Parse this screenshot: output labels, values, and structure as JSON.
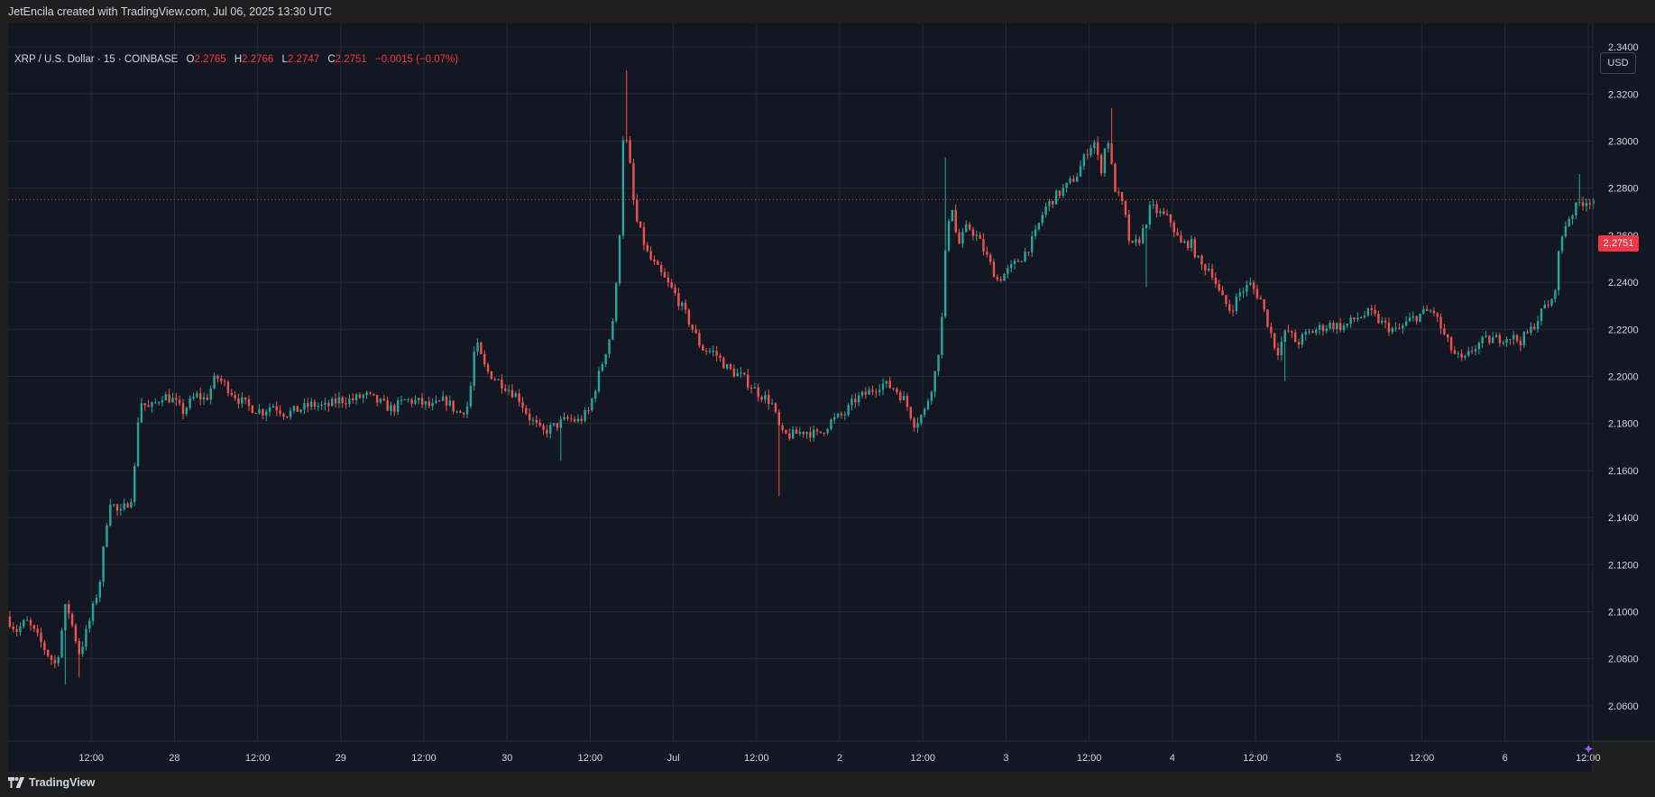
{
  "header": {
    "attribution": "JetEncila created with TradingView.com, Jul 06, 2025 13:30 UTC"
  },
  "legend": {
    "symbol": "XRP / U.S. Dollar · 15 · COINBASE",
    "open_label": "O",
    "open": "2.2765",
    "high_label": "H",
    "high": "2.2766",
    "low_label": "L",
    "low": "2.2747",
    "close_label": "C",
    "close": "2.2751",
    "change": "−0.0015 (−0.07%)"
  },
  "currency_button": "USD",
  "last_price_tag": "2.2751",
  "footer": {
    "brand": "TradingView"
  },
  "icons": {
    "sparkle": "sparkle-icon",
    "logo": "tradingview-logo-icon"
  },
  "colors": {
    "background": "#131722",
    "frame": "#1e1e1e",
    "up": "#26a69a",
    "down": "#ef5350",
    "grid": "#262a35",
    "text": "#d1d4dc",
    "price_line": "#f23645"
  },
  "chart_data": {
    "type": "candlestick",
    "title": "XRP / U.S. Dollar · 15 · COINBASE",
    "ylim": [
      2.045,
      2.35
    ],
    "y_ticks": [
      2.06,
      2.08,
      2.1,
      2.12,
      2.14,
      2.16,
      2.18,
      2.2,
      2.22,
      2.24,
      2.26,
      2.28,
      2.3,
      2.32,
      2.34
    ],
    "y_tick_labels": [
      "2.0600",
      "2.0800",
      "2.1000",
      "2.1200",
      "2.1400",
      "2.1600",
      "2.1800",
      "2.2000",
      "2.2200",
      "2.2400",
      "2.2600",
      "2.2800",
      "2.3000",
      "2.3200",
      "2.3400"
    ],
    "x_ticks": [
      {
        "t": 0.25,
        "label": "12:00"
      },
      {
        "t": 0.5,
        "label": "28"
      },
      {
        "t": 0.75,
        "label": "12:00"
      },
      {
        "t": 1.0,
        "label": "29"
      },
      {
        "t": 1.25,
        "label": "12:00"
      },
      {
        "t": 1.5,
        "label": "30"
      },
      {
        "t": 1.75,
        "label": "12:00"
      },
      {
        "t": 2.0,
        "label": "Jul"
      },
      {
        "t": 2.25,
        "label": "12:00"
      },
      {
        "t": 2.5,
        "label": "2"
      },
      {
        "t": 2.75,
        "label": "12:00"
      },
      {
        "t": 3.0,
        "label": "3"
      },
      {
        "t": 3.25,
        "label": "12:00"
      },
      {
        "t": 3.5,
        "label": "4"
      },
      {
        "t": 3.75,
        "label": "12:00"
      },
      {
        "t": 4.0,
        "label": "5"
      },
      {
        "t": 4.25,
        "label": "12:00"
      },
      {
        "t": 4.5,
        "label": "6"
      },
      {
        "t": 4.75,
        "label": "12:00"
      }
    ],
    "x_range": [
      0.0,
      4.764
    ],
    "last_price": 2.2751,
    "close_path": [
      [
        0.0,
        2.098
      ],
      [
        0.03,
        2.092
      ],
      [
        0.06,
        2.096
      ],
      [
        0.09,
        2.09
      ],
      [
        0.12,
        2.083
      ],
      [
        0.15,
        2.077
      ],
      [
        0.18,
        2.104
      ],
      [
        0.22,
        2.082
      ],
      [
        0.25,
        2.096
      ],
      [
        0.28,
        2.112
      ],
      [
        0.31,
        2.148
      ],
      [
        0.34,
        2.141
      ],
      [
        0.38,
        2.15
      ],
      [
        0.4,
        2.19
      ],
      [
        0.43,
        2.186
      ],
      [
        0.47,
        2.192
      ],
      [
        0.5,
        2.19
      ],
      [
        0.53,
        2.185
      ],
      [
        0.57,
        2.192
      ],
      [
        0.6,
        2.19
      ],
      [
        0.63,
        2.2
      ],
      [
        0.66,
        2.196
      ],
      [
        0.7,
        2.19
      ],
      [
        0.73,
        2.187
      ],
      [
        0.77,
        2.185
      ],
      [
        0.8,
        2.188
      ],
      [
        0.84,
        2.184
      ],
      [
        0.88,
        2.186
      ],
      [
        0.92,
        2.188
      ],
      [
        0.96,
        2.187
      ],
      [
        1.0,
        2.19
      ],
      [
        1.04,
        2.19
      ],
      [
        1.08,
        2.192
      ],
      [
        1.12,
        2.189
      ],
      [
        1.16,
        2.186
      ],
      [
        1.2,
        2.19
      ],
      [
        1.24,
        2.189
      ],
      [
        1.28,
        2.187
      ],
      [
        1.32,
        2.19
      ],
      [
        1.36,
        2.184
      ],
      [
        1.39,
        2.188
      ],
      [
        1.41,
        2.215
      ],
      [
        1.44,
        2.203
      ],
      [
        1.47,
        2.199
      ],
      [
        1.5,
        2.196
      ],
      [
        1.54,
        2.191
      ],
      [
        1.57,
        2.183
      ],
      [
        1.61,
        2.176
      ],
      [
        1.65,
        2.179
      ],
      [
        1.69,
        2.182
      ],
      [
        1.72,
        2.181
      ],
      [
        1.75,
        2.185
      ],
      [
        1.79,
        2.205
      ],
      [
        1.82,
        2.22
      ],
      [
        1.84,
        2.247
      ],
      [
        1.855,
        2.305
      ],
      [
        1.87,
        2.296
      ],
      [
        1.89,
        2.268
      ],
      [
        1.93,
        2.251
      ],
      [
        1.97,
        2.243
      ],
      [
        2.01,
        2.235
      ],
      [
        2.05,
        2.224
      ],
      [
        2.09,
        2.212
      ],
      [
        2.13,
        2.21
      ],
      [
        2.17,
        2.203
      ],
      [
        2.21,
        2.2
      ],
      [
        2.26,
        2.193
      ],
      [
        2.3,
        2.189
      ],
      [
        2.33,
        2.175
      ],
      [
        2.36,
        2.175
      ],
      [
        2.4,
        2.177
      ],
      [
        2.44,
        2.175
      ],
      [
        2.48,
        2.181
      ],
      [
        2.52,
        2.184
      ],
      [
        2.55,
        2.19
      ],
      [
        2.59,
        2.193
      ],
      [
        2.63,
        2.197
      ],
      [
        2.67,
        2.195
      ],
      [
        2.7,
        2.19
      ],
      [
        2.73,
        2.18
      ],
      [
        2.76,
        2.185
      ],
      [
        2.79,
        2.2
      ],
      [
        2.81,
        2.218
      ],
      [
        2.825,
        2.257
      ],
      [
        2.84,
        2.276
      ],
      [
        2.86,
        2.255
      ],
      [
        2.89,
        2.264
      ],
      [
        2.92,
        2.259
      ],
      [
        2.95,
        2.25
      ],
      [
        2.98,
        2.241
      ],
      [
        3.02,
        2.246
      ],
      [
        3.06,
        2.252
      ],
      [
        3.09,
        2.259
      ],
      [
        3.12,
        2.271
      ],
      [
        3.15,
        2.276
      ],
      [
        3.19,
        2.281
      ],
      [
        3.22,
        2.286
      ],
      [
        3.25,
        2.296
      ],
      [
        3.27,
        2.3
      ],
      [
        3.29,
        2.287
      ],
      [
        3.31,
        2.303
      ],
      [
        3.33,
        2.281
      ],
      [
        3.36,
        2.271
      ],
      [
        3.38,
        2.254
      ],
      [
        3.41,
        2.259
      ],
      [
        3.44,
        2.272
      ],
      [
        3.47,
        2.269
      ],
      [
        3.5,
        2.266
      ],
      [
        3.53,
        2.256
      ],
      [
        3.56,
        2.257
      ],
      [
        3.59,
        2.247
      ],
      [
        3.62,
        2.246
      ],
      [
        3.65,
        2.234
      ],
      [
        3.68,
        2.228
      ],
      [
        3.71,
        2.236
      ],
      [
        3.74,
        2.239
      ],
      [
        3.77,
        2.233
      ],
      [
        3.8,
        2.219
      ],
      [
        3.82,
        2.21
      ],
      [
        3.85,
        2.22
      ],
      [
        3.88,
        2.214
      ],
      [
        3.91,
        2.218
      ],
      [
        3.94,
        2.22
      ],
      [
        3.98,
        2.222
      ],
      [
        4.02,
        2.221
      ],
      [
        4.06,
        2.225
      ],
      [
        4.1,
        2.227
      ],
      [
        4.14,
        2.222
      ],
      [
        4.18,
        2.219
      ],
      [
        4.22,
        2.224
      ],
      [
        4.26,
        2.227
      ],
      [
        4.29,
        2.228
      ],
      [
        4.32,
        2.218
      ],
      [
        4.35,
        2.21
      ],
      [
        4.38,
        2.206
      ],
      [
        4.41,
        2.212
      ],
      [
        4.44,
        2.215
      ],
      [
        4.48,
        2.216
      ],
      [
        4.52,
        2.217
      ],
      [
        4.55,
        2.215
      ],
      [
        4.58,
        2.219
      ],
      [
        4.61,
        2.226
      ],
      [
        4.63,
        2.231
      ],
      [
        4.65,
        2.231
      ],
      [
        4.67,
        2.256
      ],
      [
        4.69,
        2.266
      ],
      [
        4.71,
        2.27
      ],
      [
        4.73,
        2.274
      ],
      [
        4.764,
        2.2751
      ]
    ],
    "extreme_wicks": [
      {
        "t": 0.17,
        "low": 2.069
      },
      {
        "t": 0.21,
        "low": 2.072
      },
      {
        "t": 1.66,
        "low": 2.164
      },
      {
        "t": 1.85,
        "high": 2.33
      },
      {
        "t": 2.31,
        "low": 2.149
      },
      {
        "t": 2.81,
        "high": 2.293
      },
      {
        "t": 3.31,
        "high": 2.314
      },
      {
        "t": 3.42,
        "low": 2.238
      },
      {
        "t": 3.83,
        "low": 2.198
      },
      {
        "t": 4.72,
        "high": 2.286
      }
    ]
  }
}
